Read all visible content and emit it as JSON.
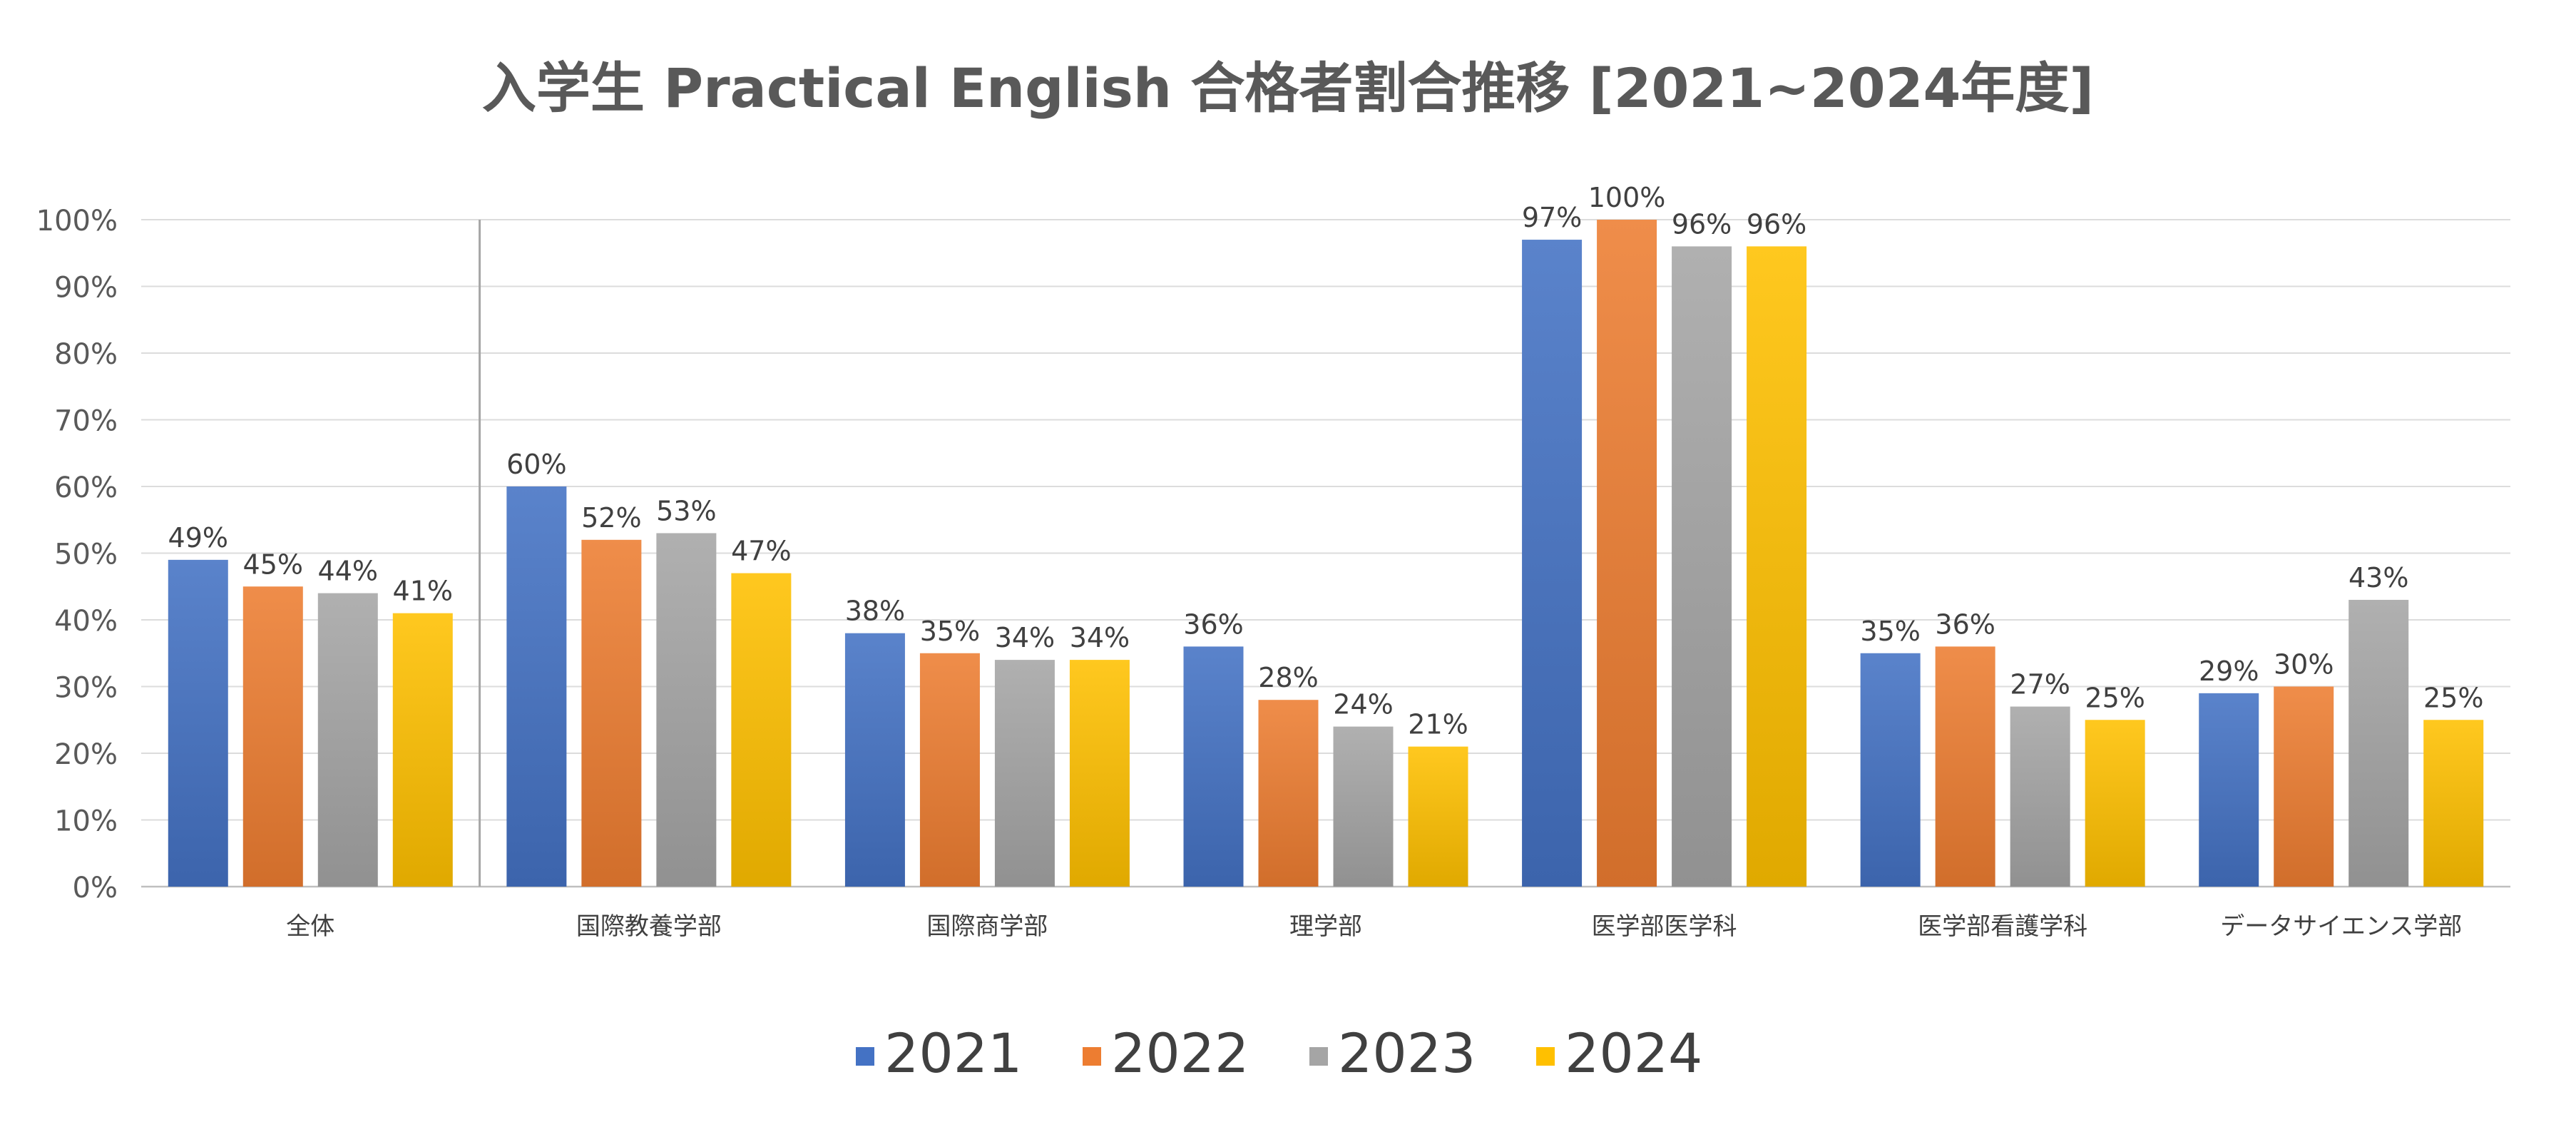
{
  "chart_data": {
    "type": "bar",
    "title": "入学生 Practical English 合格者割合推移 [2021~2024年度]",
    "xlabel": "",
    "ylabel": "",
    "ylim": [
      0,
      100
    ],
    "y_ticks": [
      "0%",
      "10%",
      "20%",
      "30%",
      "40%",
      "50%",
      "60%",
      "70%",
      "80%",
      "90%",
      "100%"
    ],
    "grid": true,
    "legend_position": "bottom",
    "categories": [
      "全体",
      "国際教養学部",
      "国際商学部",
      "理学部",
      "医学部医学科",
      "医学部看護学科",
      "データサイエンス学部"
    ],
    "series": [
      {
        "name": "2021",
        "color": "#4472c4",
        "values": [
          49,
          60,
          38,
          36,
          97,
          35,
          29
        ],
        "labels": [
          "49%",
          "60%",
          "38%",
          "36%",
          "97%",
          "35%",
          "29%"
        ]
      },
      {
        "name": "2022",
        "color": "#ed7d31",
        "values": [
          45,
          52,
          35,
          28,
          100,
          36,
          30
        ],
        "labels": [
          "45%",
          "52%",
          "35%",
          "28%",
          "100%",
          "36%",
          "30%"
        ]
      },
      {
        "name": "2023",
        "color": "#a5a5a5",
        "values": [
          44,
          53,
          34,
          24,
          96,
          27,
          43
        ],
        "labels": [
          "44%",
          "53%",
          "34%",
          "24%",
          "96%",
          "27%",
          "43%"
        ]
      },
      {
        "name": "2024",
        "color": "#ffc000",
        "values": [
          41,
          47,
          34,
          21,
          96,
          25,
          25
        ],
        "labels": [
          "41%",
          "47%",
          "34%",
          "21%",
          "96%",
          "25%",
          "25%"
        ]
      }
    ]
  }
}
